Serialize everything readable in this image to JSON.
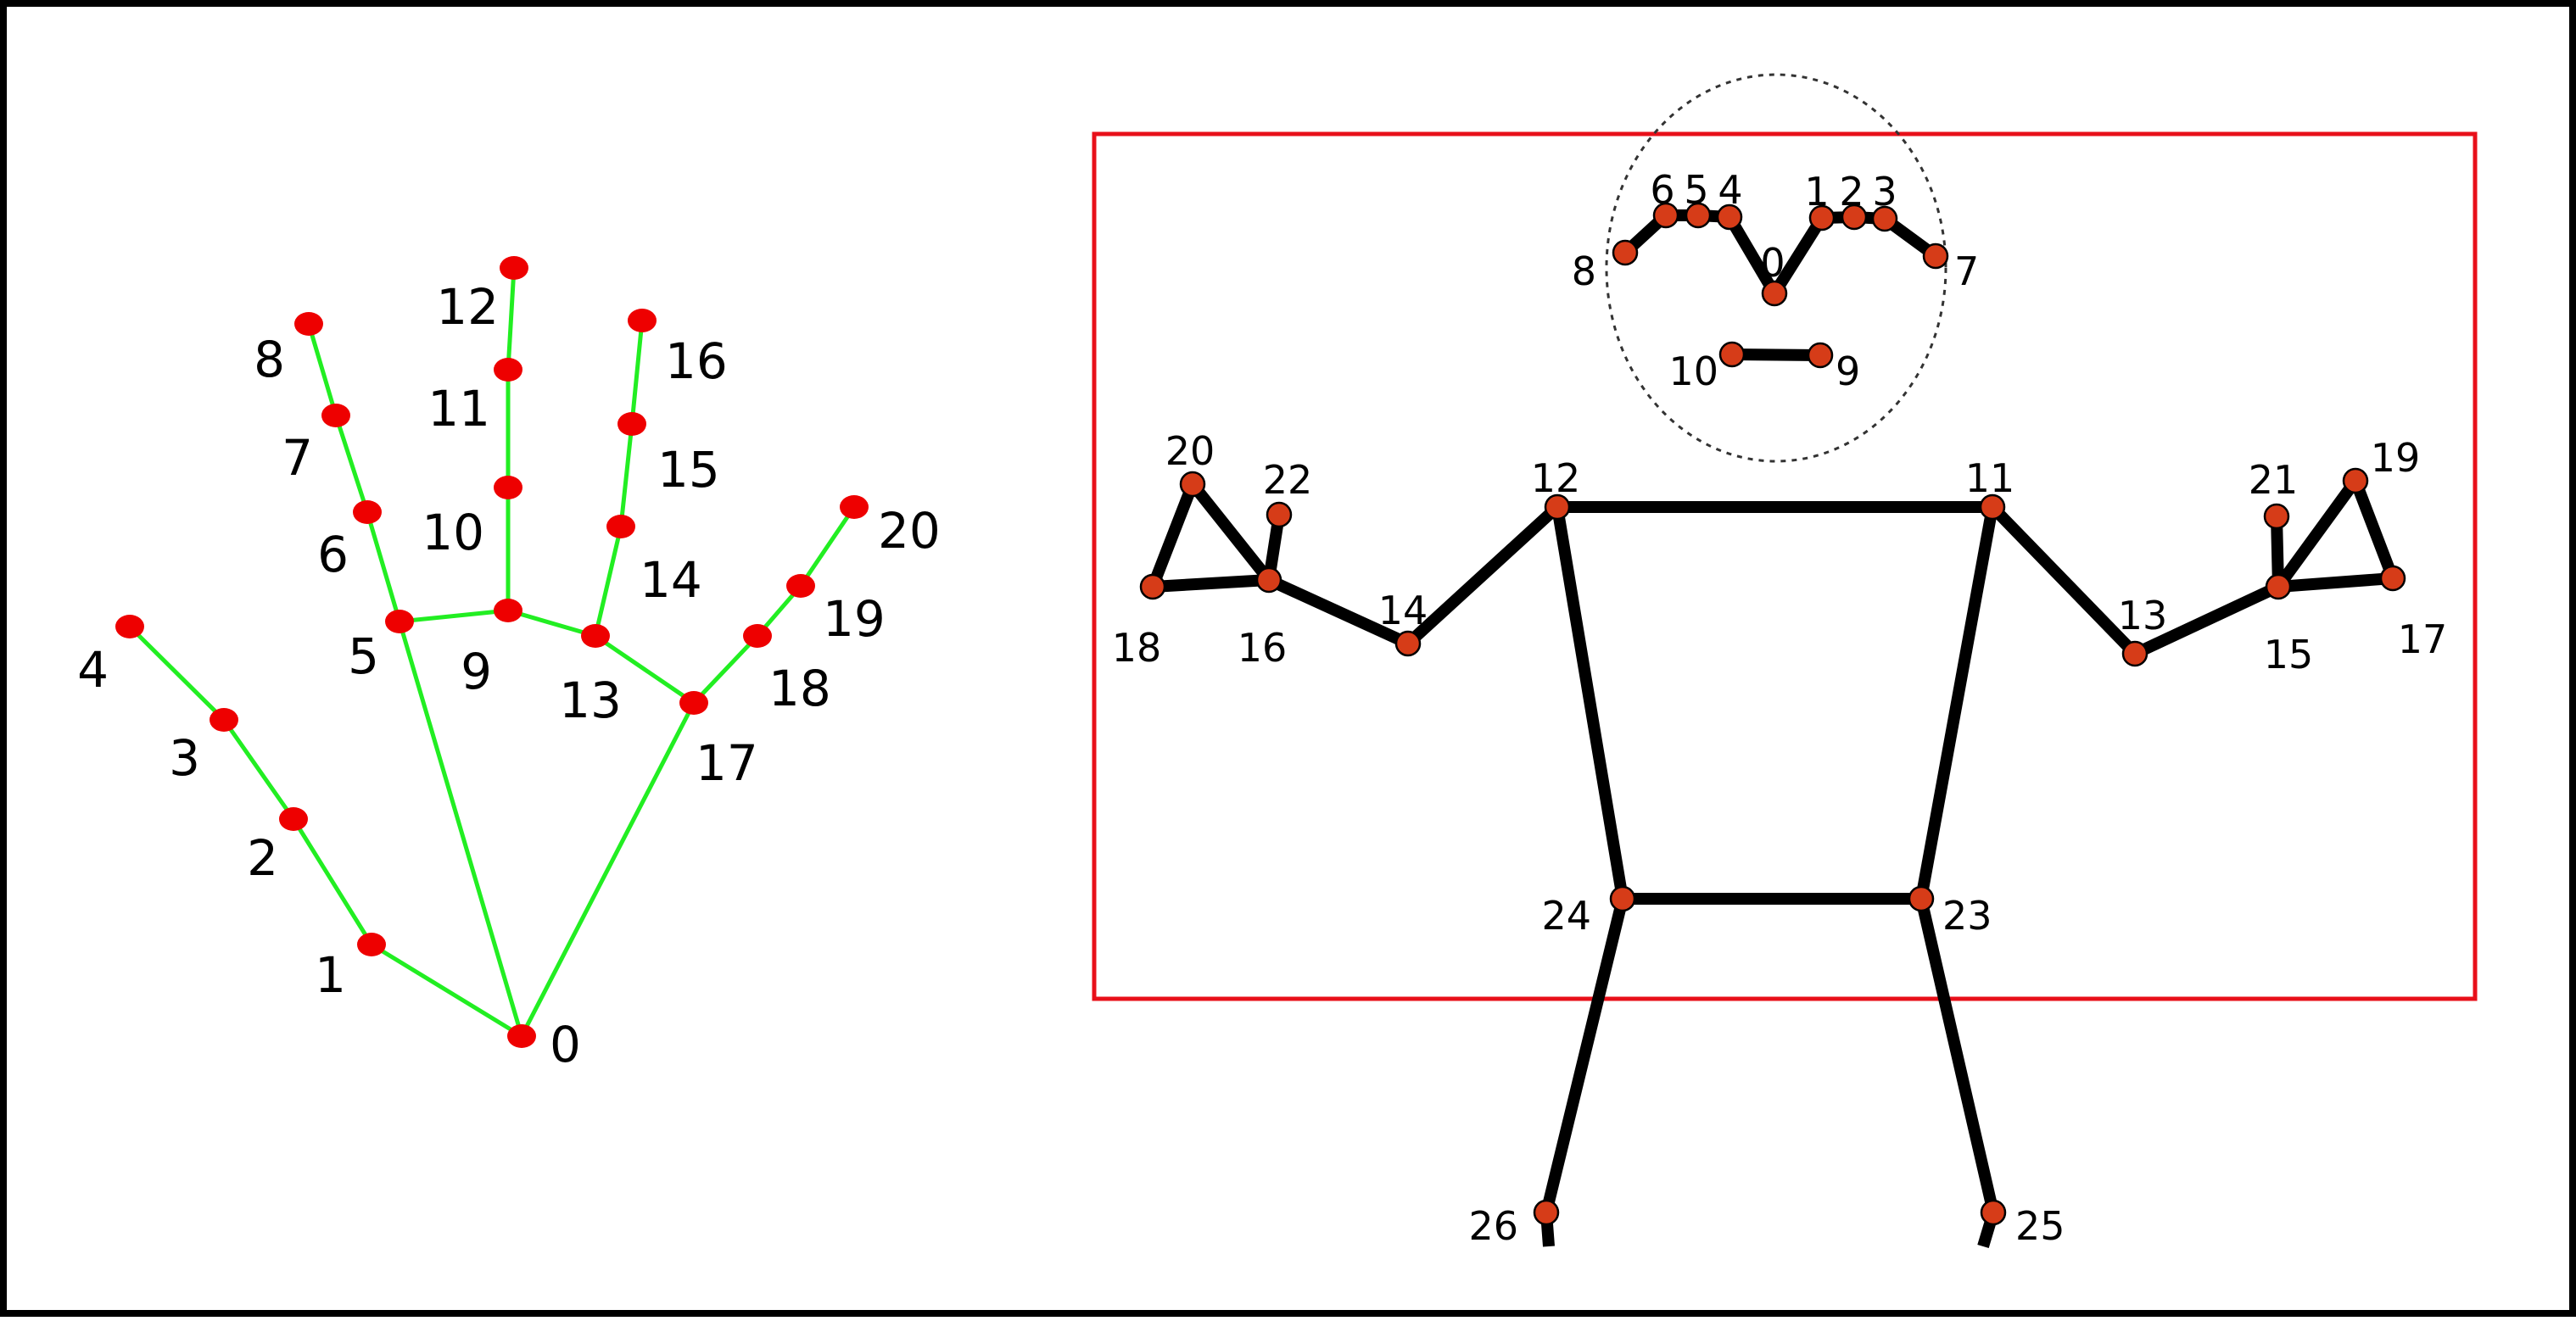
{
  "colors": {
    "background": "#ffffff",
    "frame_border": "#000000",
    "hand_bone": "#22ee22",
    "hand_joint": "#ee0000",
    "pose_bone": "#000000",
    "pose_joint_fill": "#d63c18",
    "pose_joint_stroke": "#000000",
    "crop_box": "#e8101a",
    "face_circle": "#333333"
  },
  "hand": {
    "landmarks": [
      {
        "id": "0",
        "label": "0"
      },
      {
        "id": "1",
        "label": "1"
      },
      {
        "id": "2",
        "label": "2"
      },
      {
        "id": "3",
        "label": "3"
      },
      {
        "id": "4",
        "label": "4"
      },
      {
        "id": "5",
        "label": "5"
      },
      {
        "id": "6",
        "label": "6"
      },
      {
        "id": "7",
        "label": "7"
      },
      {
        "id": "8",
        "label": "8"
      },
      {
        "id": "9",
        "label": "9"
      },
      {
        "id": "10",
        "label": "10"
      },
      {
        "id": "11",
        "label": "11"
      },
      {
        "id": "12",
        "label": "12"
      },
      {
        "id": "13",
        "label": "13"
      },
      {
        "id": "14",
        "label": "14"
      },
      {
        "id": "15",
        "label": "15"
      },
      {
        "id": "16",
        "label": "16"
      },
      {
        "id": "17",
        "label": "17"
      },
      {
        "id": "18",
        "label": "18"
      },
      {
        "id": "19",
        "label": "19"
      },
      {
        "id": "20",
        "label": "20"
      }
    ],
    "connections": [
      [
        "0",
        "1"
      ],
      [
        "1",
        "2"
      ],
      [
        "2",
        "3"
      ],
      [
        "3",
        "4"
      ],
      [
        "0",
        "5"
      ],
      [
        "5",
        "6"
      ],
      [
        "6",
        "7"
      ],
      [
        "7",
        "8"
      ],
      [
        "5",
        "9"
      ],
      [
        "9",
        "10"
      ],
      [
        "10",
        "11"
      ],
      [
        "11",
        "12"
      ],
      [
        "9",
        "13"
      ],
      [
        "13",
        "14"
      ],
      [
        "14",
        "15"
      ],
      [
        "15",
        "16"
      ],
      [
        "13",
        "17"
      ],
      [
        "0",
        "17"
      ],
      [
        "17",
        "18"
      ],
      [
        "18",
        "19"
      ],
      [
        "19",
        "20"
      ]
    ]
  },
  "pose": {
    "landmarks": [
      {
        "id": "0",
        "label": "0"
      },
      {
        "id": "1",
        "label": "1"
      },
      {
        "id": "2",
        "label": "2"
      },
      {
        "id": "3",
        "label": "3"
      },
      {
        "id": "4",
        "label": "4"
      },
      {
        "id": "5",
        "label": "5"
      },
      {
        "id": "6",
        "label": "6"
      },
      {
        "id": "7",
        "label": "7"
      },
      {
        "id": "8",
        "label": "8"
      },
      {
        "id": "9",
        "label": "9"
      },
      {
        "id": "10",
        "label": "10"
      },
      {
        "id": "11",
        "label": "11"
      },
      {
        "id": "12",
        "label": "12"
      },
      {
        "id": "13",
        "label": "13"
      },
      {
        "id": "14",
        "label": "14"
      },
      {
        "id": "15",
        "label": "15"
      },
      {
        "id": "16",
        "label": "16"
      },
      {
        "id": "17",
        "label": "17"
      },
      {
        "id": "18",
        "label": "18"
      },
      {
        "id": "19",
        "label": "19"
      },
      {
        "id": "20",
        "label": "20"
      },
      {
        "id": "21",
        "label": "21"
      },
      {
        "id": "22",
        "label": "22"
      },
      {
        "id": "23",
        "label": "23"
      },
      {
        "id": "24",
        "label": "24"
      },
      {
        "id": "25",
        "label": "25"
      },
      {
        "id": "26",
        "label": "26"
      }
    ],
    "connections": [
      [
        "8",
        "6"
      ],
      [
        "6",
        "5"
      ],
      [
        "5",
        "4"
      ],
      [
        "4",
        "0"
      ],
      [
        "0",
        "1"
      ],
      [
        "1",
        "2"
      ],
      [
        "2",
        "3"
      ],
      [
        "3",
        "7"
      ],
      [
        "10",
        "9"
      ],
      [
        "12",
        "11"
      ],
      [
        "12",
        "24"
      ],
      [
        "11",
        "23"
      ],
      [
        "24",
        "23"
      ],
      [
        "12",
        "14"
      ],
      [
        "14",
        "16"
      ],
      [
        "16",
        "18"
      ],
      [
        "18",
        "20"
      ],
      [
        "20",
        "16"
      ],
      [
        "16",
        "22"
      ],
      [
        "11",
        "13"
      ],
      [
        "13",
        "15"
      ],
      [
        "15",
        "17"
      ],
      [
        "17",
        "19"
      ],
      [
        "19",
        "15"
      ],
      [
        "15",
        "21"
      ],
      [
        "24",
        "26"
      ],
      [
        "23",
        "25"
      ]
    ]
  }
}
